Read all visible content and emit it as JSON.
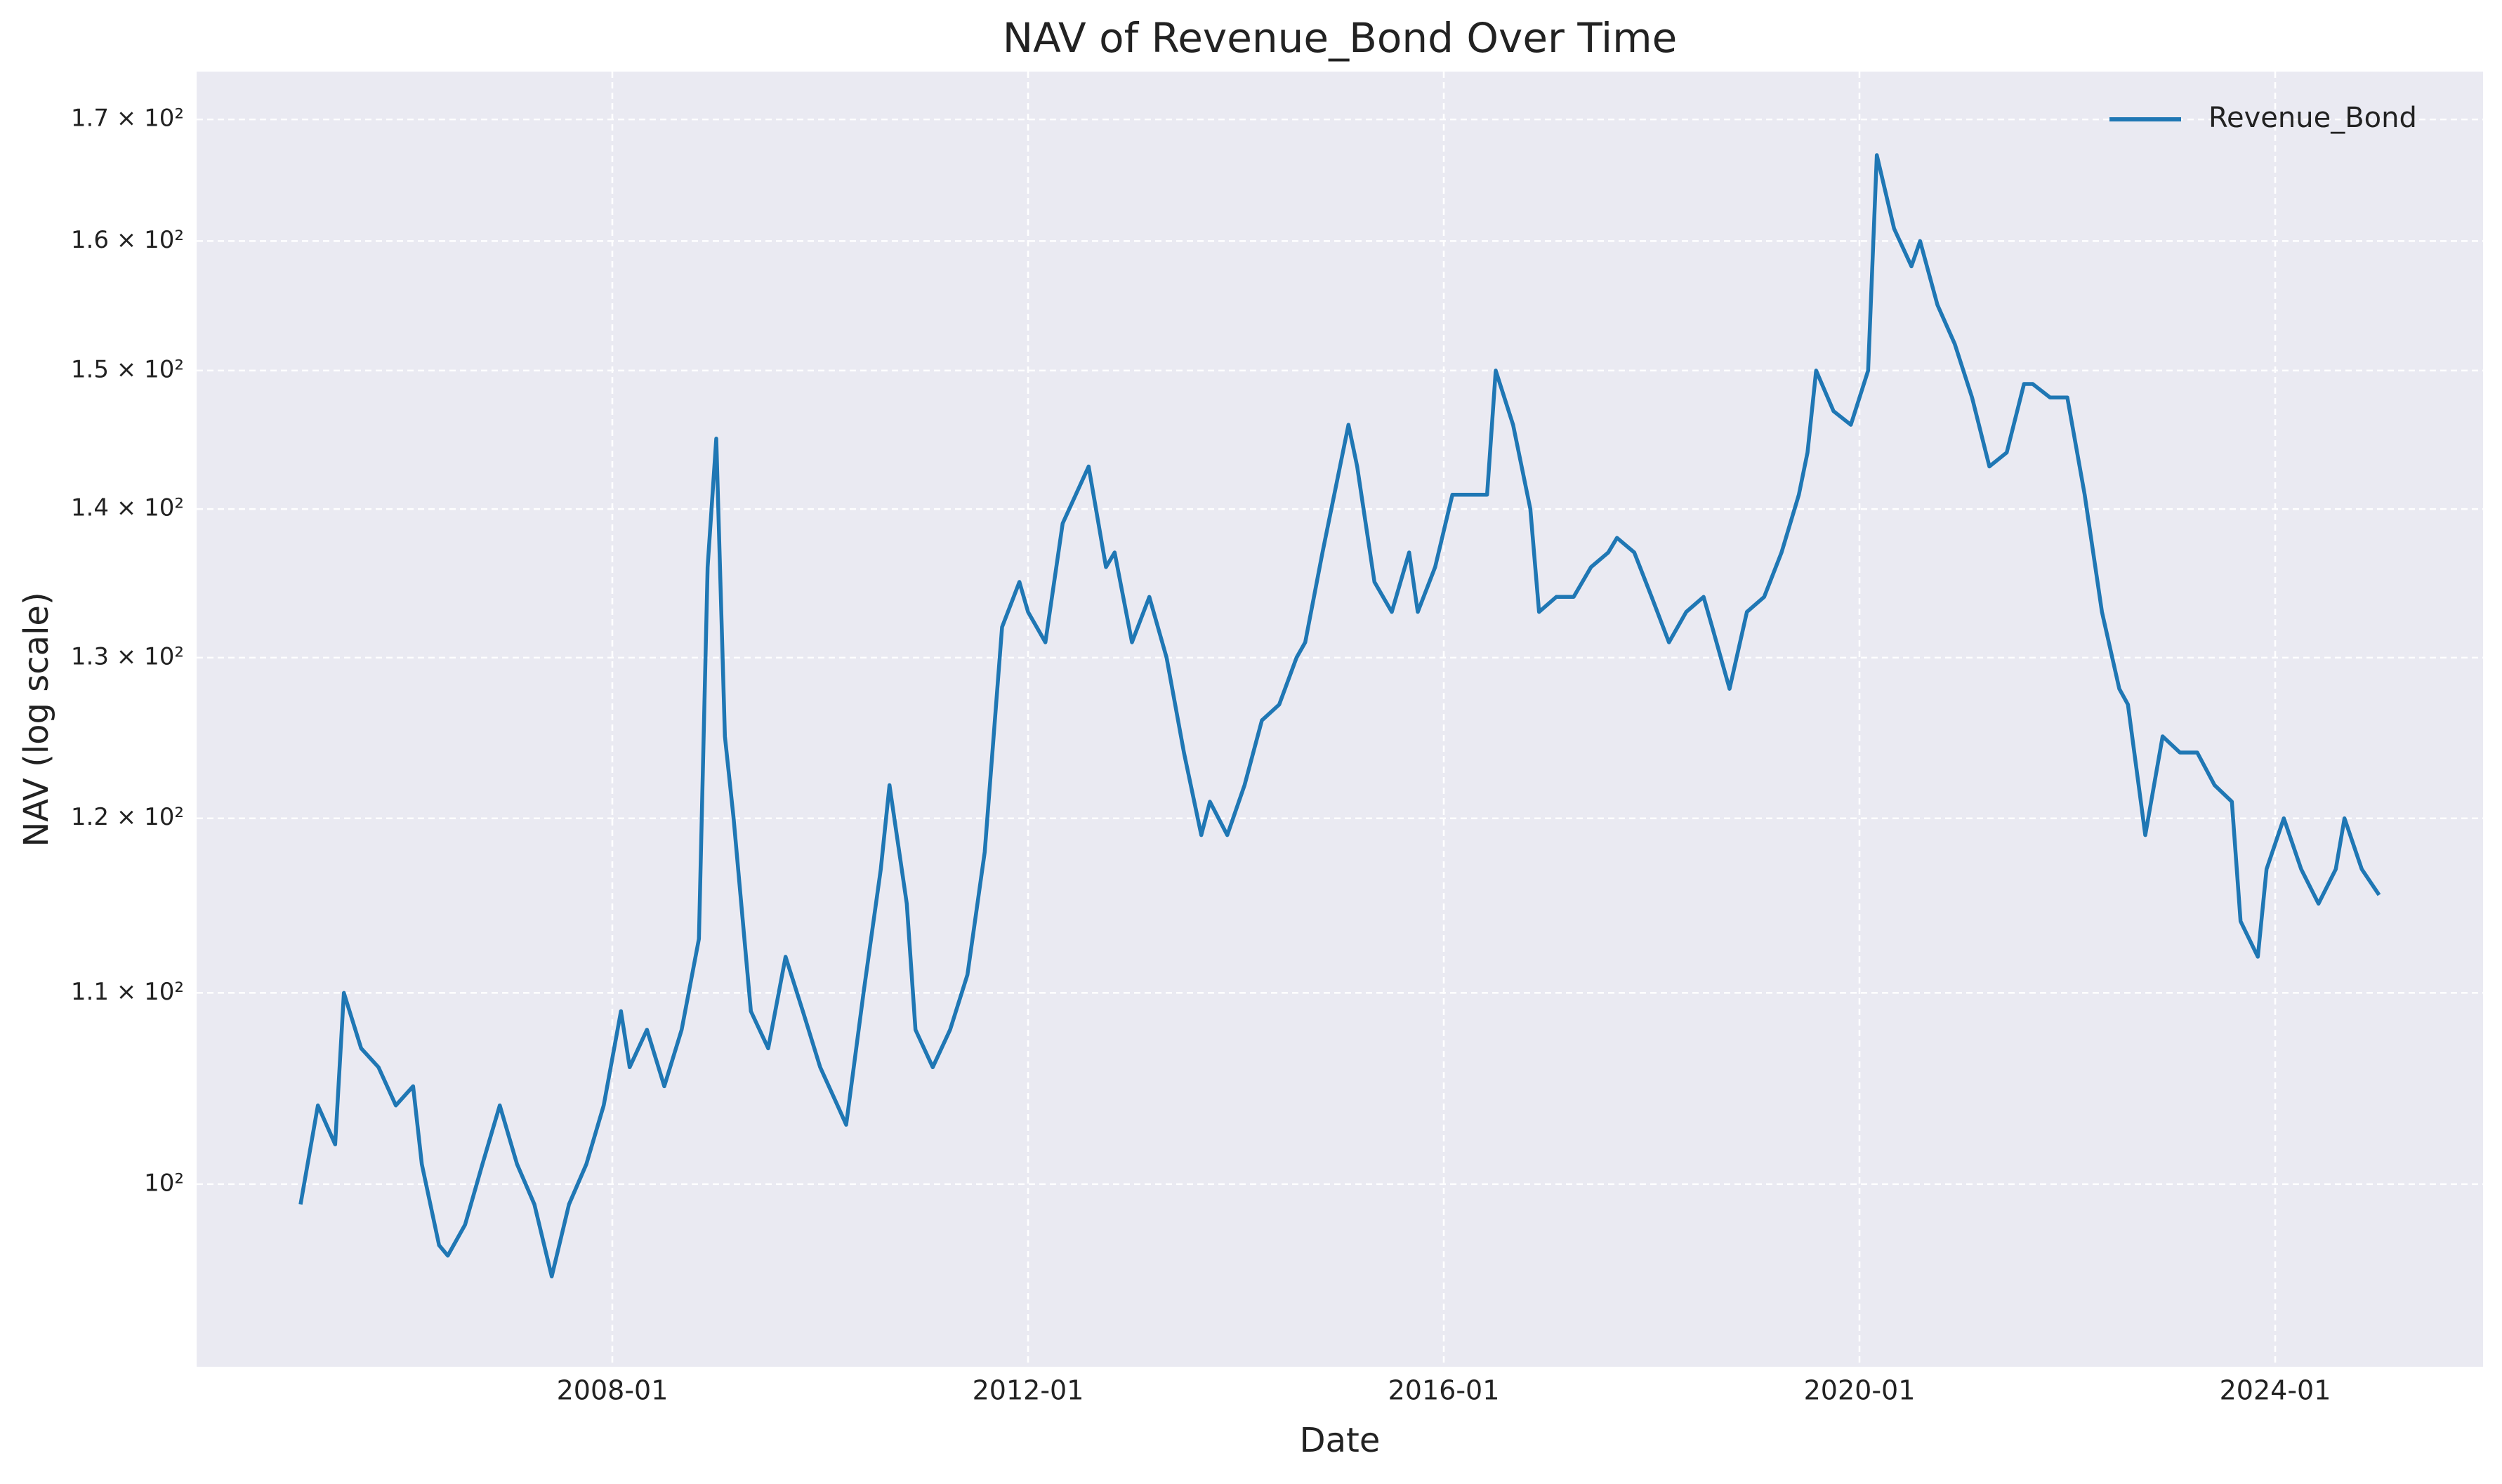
{
  "chart_data": {
    "type": "line",
    "title": "NAV of Revenue_Bond Over Time",
    "x_label": "Date",
    "y_label": "NAV (log scale)",
    "yscale": "log",
    "grid": true,
    "legend_position": "upper right",
    "xlim": [
      "2004-01",
      "2026-01"
    ],
    "xticks": [
      "2008-01",
      "2012-01",
      "2016-01",
      "2020-01",
      "2024-01"
    ],
    "ylim": [
      91.3,
      174.1
    ],
    "yticks": [
      {
        "value": 100,
        "label": "10²"
      },
      {
        "value": 110,
        "label": "1.1 × 10²"
      },
      {
        "value": 120,
        "label": "1.2 × 10²"
      },
      {
        "value": 130,
        "label": "1.3 × 10²"
      },
      {
        "value": 140,
        "label": "1.4 × 10²"
      },
      {
        "value": 150,
        "label": "1.5 × 10²"
      },
      {
        "value": 160,
        "label": "1.6 × 10²"
      },
      {
        "value": 170,
        "label": "1.7 × 10²"
      }
    ],
    "x": [
      "2005-01",
      "2005-03",
      "2005-05",
      "2005-06",
      "2005-08",
      "2005-10",
      "2005-12",
      "2006-02",
      "2006-03",
      "2006-05",
      "2006-06",
      "2006-08",
      "2006-10",
      "2006-12",
      "2007-02",
      "2007-04",
      "2007-06",
      "2007-08",
      "2007-10",
      "2007-12",
      "2008-02",
      "2008-03",
      "2008-05",
      "2008-07",
      "2008-09",
      "2008-11",
      "2008-12",
      "2009-01",
      "2009-02",
      "2009-03",
      "2009-05",
      "2009-07",
      "2009-09",
      "2009-11",
      "2010-01",
      "2010-03",
      "2010-04",
      "2010-06",
      "2010-08",
      "2010-09",
      "2010-11",
      "2010-12",
      "2011-02",
      "2011-04",
      "2011-06",
      "2011-08",
      "2011-10",
      "2011-12",
      "2012-01",
      "2012-03",
      "2012-05",
      "2012-08",
      "2012-10",
      "2012-11",
      "2013-01",
      "2013-03",
      "2013-05",
      "2013-07",
      "2013-09",
      "2013-10",
      "2013-12",
      "2014-02",
      "2014-04",
      "2014-06",
      "2014-08",
      "2014-09",
      "2014-11",
      "2015-02",
      "2015-03",
      "2015-05",
      "2015-07",
      "2015-09",
      "2015-10",
      "2015-12",
      "2016-02",
      "2016-04",
      "2016-06",
      "2016-07",
      "2016-09",
      "2016-11",
      "2016-12",
      "2017-02",
      "2017-04",
      "2017-06",
      "2017-08",
      "2017-09",
      "2017-11",
      "2018-01",
      "2018-03",
      "2018-05",
      "2018-07",
      "2018-08",
      "2018-10",
      "2018-12",
      "2019-02",
      "2019-04",
      "2019-06",
      "2019-07",
      "2019-08",
      "2019-10",
      "2019-12",
      "2020-02",
      "2020-03",
      "2020-05",
      "2020-07",
      "2020-08",
      "2020-10",
      "2020-12",
      "2021-02",
      "2021-04",
      "2021-06",
      "2021-08",
      "2021-09",
      "2021-11",
      "2022-01",
      "2022-03",
      "2022-05",
      "2022-07",
      "2022-08",
      "2022-10",
      "2022-12",
      "2023-02",
      "2023-04",
      "2023-06",
      "2023-08",
      "2023-09",
      "2023-11",
      "2023-12",
      "2024-02",
      "2024-04",
      "2024-06",
      "2024-08",
      "2024-09",
      "2024-11",
      "2025-01"
    ],
    "series": [
      {
        "name": "Revenue_Bond",
        "color": "#1f77b4",
        "values": [
          99,
          104,
          102,
          110,
          107,
          106,
          104,
          105,
          101,
          97,
          96.5,
          98,
          101,
          104,
          101,
          99,
          95.5,
          99,
          101,
          104,
          109,
          106,
          108,
          105,
          108,
          113,
          136,
          145,
          125,
          120,
          109,
          107,
          112,
          109,
          106,
          104,
          103,
          110,
          117,
          122,
          115,
          108,
          106,
          108,
          111,
          118,
          132,
          135,
          133,
          131,
          139,
          143,
          136,
          137,
          131,
          134,
          130,
          124,
          119,
          121,
          119,
          122,
          126,
          127,
          130,
          131,
          137,
          146,
          143,
          135,
          133,
          137,
          133,
          136,
          141,
          141,
          141,
          150,
          146,
          140,
          133,
          134,
          134,
          136,
          137,
          138,
          137,
          134,
          131,
          133,
          134,
          132,
          128,
          133,
          134,
          137,
          141,
          144,
          150,
          147,
          146,
          150,
          167,
          161,
          158,
          160,
          155,
          152,
          148,
          143,
          144,
          149,
          149,
          148,
          148,
          141,
          133,
          128,
          127,
          119,
          125,
          124,
          124,
          122,
          121,
          114,
          112,
          117,
          120,
          117,
          115,
          117,
          120,
          117,
          115.5
        ]
      }
    ]
  }
}
